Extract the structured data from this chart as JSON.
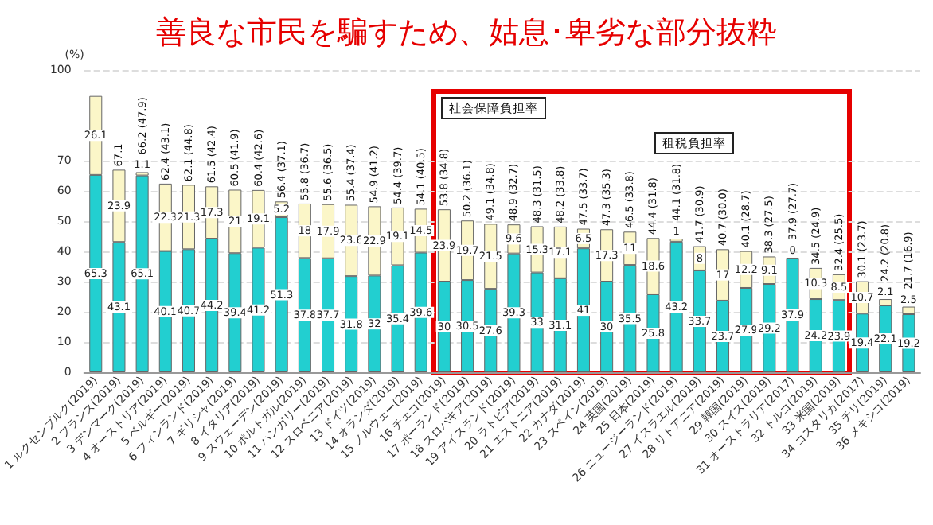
{
  "chart_data": {
    "type": "bar",
    "title": "善良な市民を騙すため、姑息･卑劣な部分抜粋",
    "ylabel": "(%)",
    "stacked": true,
    "data_labels": true,
    "grid": "y",
    "categories": [
      "1 ルクセンブルク(2019)",
      "2 フランス(2019)",
      "3 デンマーク(2019)",
      "4 オーストリア(2019)",
      "5 ベルギー(2019)",
      "6 フィンランド(2019)",
      "7 ギリシャ(2019)",
      "8 イタリア(2019)",
      "9 スウェーデン(2019)",
      "10 ポルトガル(2019)",
      "11 ハンガリー(2019)",
      "12 スロベニア(2019)",
      "13 ドイツ(2019)",
      "14 オランダ(2019)",
      "15 ノルウェー(2019)",
      "16 チェコ(2019)",
      "17 ポーランド(2019)",
      "18 スロバキア(2019)",
      "19 アイスランド(2019)",
      "20 ラトビア(2019)",
      "21 エストニア(2019)",
      "22 カナダ(2019)",
      "23 スペイン(2019)",
      "24 英国(2019)",
      "25 日本(2019)",
      "26 ニュージーランド(2019)",
      "27 イスラエル(2019)",
      "28 リトアニア(2019)",
      "29 韓国(2019)",
      "30 スイス(2019)",
      "31 オーストラリア(2017)",
      "32 トルコ(2019)",
      "33 米国(2019)",
      "34 コスタリカ(2017)",
      "35 チリ(2019)",
      "36 メキシコ(2019)"
    ],
    "series": [
      {
        "color": "#22cfd0",
        "values": [
          65.3,
          43.1,
          65.1,
          40.1,
          40.7,
          44.2,
          39.4,
          41.2,
          51.3,
          37.8,
          37.7,
          31.8,
          32.0,
          35.4,
          39.6,
          30.0,
          30.5,
          27.6,
          39.3,
          33.0,
          31.1,
          41.0,
          30.0,
          35.5,
          25.8,
          43.2,
          33.7,
          23.7,
          27.9,
          29.2,
          37.9,
          24.2,
          23.9,
          19.4,
          22.1,
          19.2
        ]
      },
      {
        "color": "#fbf6c8",
        "values": [
          26.1,
          23.9,
          1.1,
          22.3,
          21.3,
          17.3,
          21.0,
          19.1,
          5.2,
          18.0,
          17.9,
          23.6,
          22.9,
          19.1,
          14.5,
          23.9,
          19.7,
          21.5,
          9.6,
          15.3,
          17.1,
          6.5,
          17.3,
          11.0,
          18.6,
          1.0,
          8.0,
          17.0,
          12.2,
          9.1,
          0.0,
          10.3,
          8.5,
          10.7,
          2.1,
          2.5
        ]
      }
    ],
    "totals": [
      null,
      "67.1",
      "66.2 (47.9)",
      "62.4 (43.1)",
      "62.1 (44.8)",
      "61.5 (42.4)",
      "60.5 (41.9)",
      "60.4 (42.6)",
      "56.4 (37.1)",
      "55.8 (36.7)",
      "55.6 (36.5)",
      "55.4 (37.4)",
      "54.9 (41.2)",
      "54.4 (39.7)",
      "54.1 (40.5)",
      "53.8 (34.8)",
      "50.2 (36.1)",
      "49.1 (34.8)",
      "48.9 (32.7)",
      "48.3 (31.5)",
      "48.2 (33.8)",
      "47.5 (33.7)",
      "47.3 (35.3)",
      "46.5 (33.8)",
      "44.4 (31.8)",
      "44.1 (31.8)",
      "41.7 (30.9)",
      "40.7 (30.0)",
      "40.1 (28.7)",
      "38.3 (27.5)",
      "37.9 (27.7)",
      "34.5 (24.9)",
      "32.4 (25.5)",
      "30.1 (23.7)",
      "24.2 (20.8)",
      "21.7 (16.9)"
    ],
    "ylim": [
      0,
      100
    ],
    "yticks": [
      0,
      10,
      20,
      30,
      40,
      50,
      60,
      70,
      100
    ],
    "annotations": [
      "社会保障負担率",
      "租税負担率"
    ]
  }
}
